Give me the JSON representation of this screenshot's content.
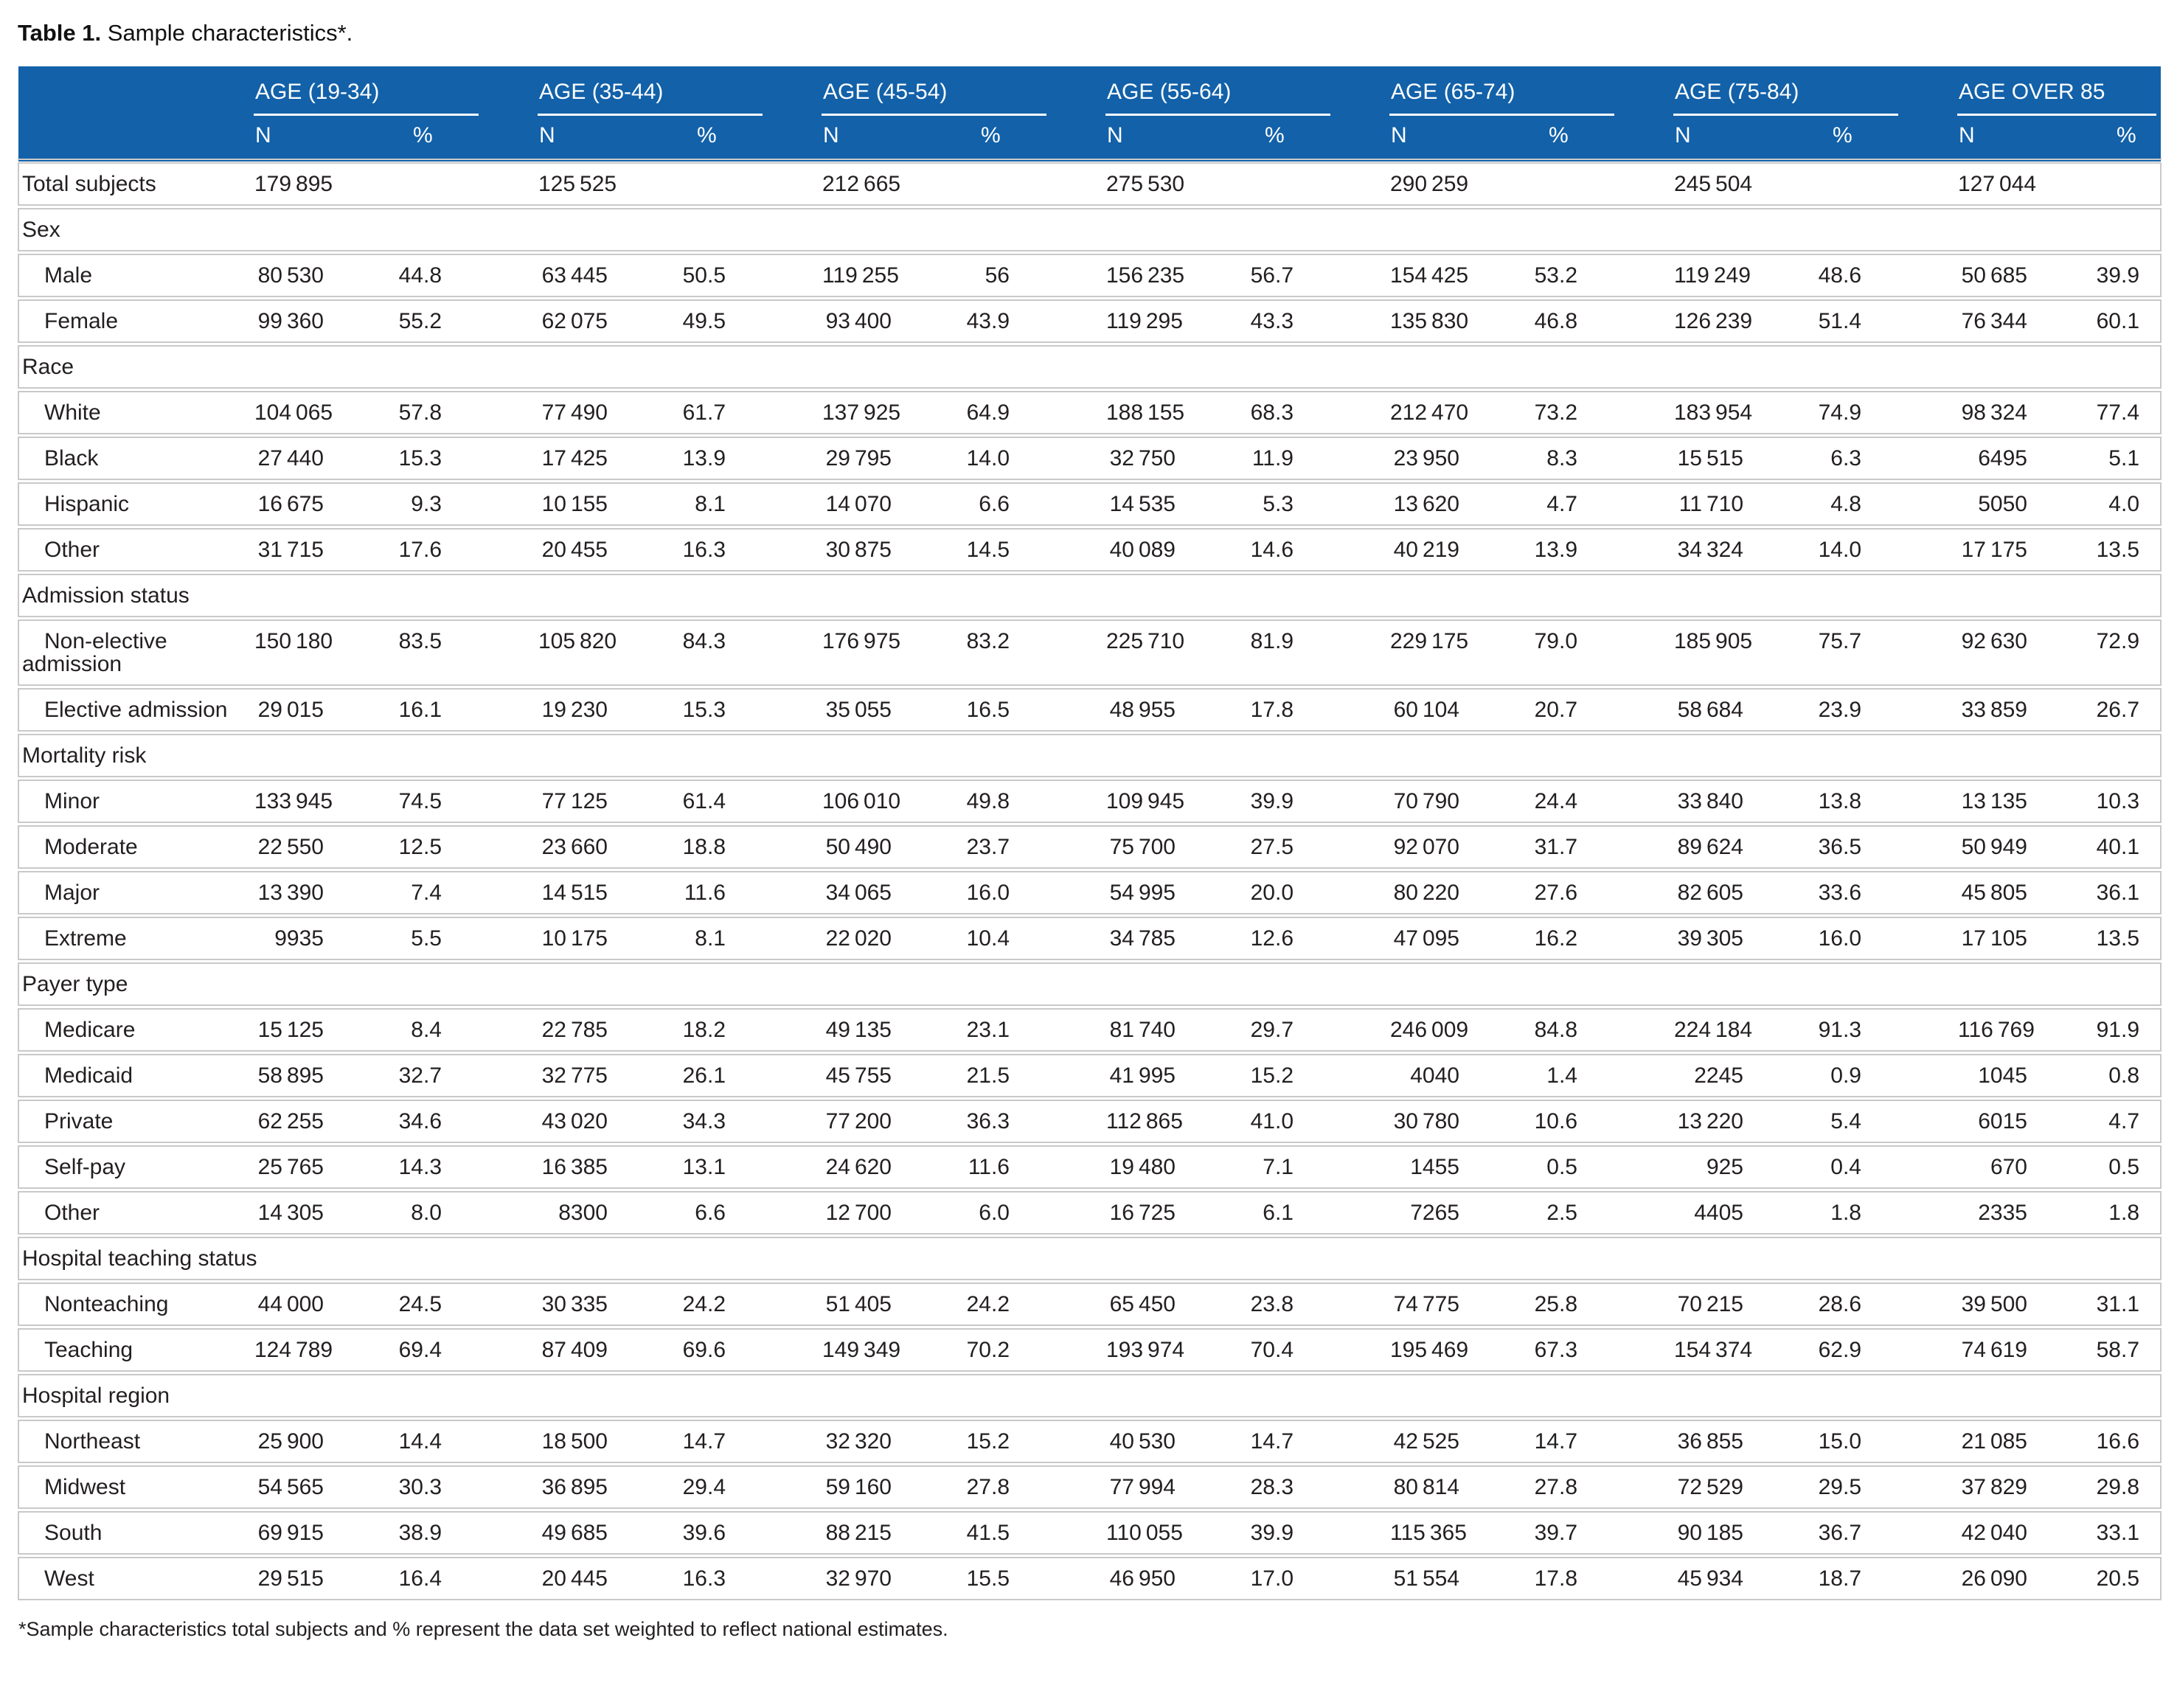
{
  "title": {
    "label": "Table 1.",
    "text": "Sample characteristics*."
  },
  "footnote": "*Sample characteristics total subjects and % represent the data set weighted to reflect national estimates.",
  "colors": {
    "header_bg": "#1261a9",
    "header_text": "#ffffff",
    "row_line": "#c9c9c9",
    "body_text": "#231f20"
  },
  "table": {
    "age_groups": [
      "AGE (19-34)",
      "AGE (35-44)",
      "AGE (45-54)",
      "AGE (55-64)",
      "AGE (65-74)",
      "AGE (75-84)",
      "AGE OVER 85"
    ],
    "subheaders": {
      "n": "N",
      "pct": "%"
    },
    "rows": [
      {
        "type": "data",
        "label": "Total subjects",
        "indent": false,
        "values": [
          [
            "179 895",
            ""
          ],
          [
            "125 525",
            ""
          ],
          [
            "212 665",
            ""
          ],
          [
            "275 530",
            ""
          ],
          [
            "290 259",
            ""
          ],
          [
            "245 504",
            ""
          ],
          [
            "127 044",
            ""
          ]
        ]
      },
      {
        "type": "section",
        "label": "Sex"
      },
      {
        "type": "data",
        "label": "Male",
        "indent": true,
        "values": [
          [
            "80 530",
            "44.8"
          ],
          [
            "63 445",
            "50.5"
          ],
          [
            "119 255",
            "56"
          ],
          [
            "156 235",
            "56.7"
          ],
          [
            "154 425",
            "53.2"
          ],
          [
            "119 249",
            "48.6"
          ],
          [
            "50 685",
            "39.9"
          ]
        ]
      },
      {
        "type": "data",
        "label": "Female",
        "indent": true,
        "values": [
          [
            "99 360",
            "55.2"
          ],
          [
            "62 075",
            "49.5"
          ],
          [
            "93 400",
            "43.9"
          ],
          [
            "119 295",
            "43.3"
          ],
          [
            "135 830",
            "46.8"
          ],
          [
            "126 239",
            "51.4"
          ],
          [
            "76 344",
            "60.1"
          ]
        ]
      },
      {
        "type": "section",
        "label": "Race"
      },
      {
        "type": "data",
        "label": "White",
        "indent": true,
        "values": [
          [
            "104 065",
            "57.8"
          ],
          [
            "77 490",
            "61.7"
          ],
          [
            "137 925",
            "64.9"
          ],
          [
            "188 155",
            "68.3"
          ],
          [
            "212 470",
            "73.2"
          ],
          [
            "183 954",
            "74.9"
          ],
          [
            "98 324",
            "77.4"
          ]
        ]
      },
      {
        "type": "data",
        "label": "Black",
        "indent": true,
        "values": [
          [
            "27 440",
            "15.3"
          ],
          [
            "17 425",
            "13.9"
          ],
          [
            "29 795",
            "14.0"
          ],
          [
            "32 750",
            "11.9"
          ],
          [
            "23 950",
            "8.3"
          ],
          [
            "15 515",
            "6.3"
          ],
          [
            "6495",
            "5.1"
          ]
        ]
      },
      {
        "type": "data",
        "label": "Hispanic",
        "indent": true,
        "values": [
          [
            "16 675",
            "9.3"
          ],
          [
            "10 155",
            "8.1"
          ],
          [
            "14 070",
            "6.6"
          ],
          [
            "14 535",
            "5.3"
          ],
          [
            "13 620",
            "4.7"
          ],
          [
            "11 710",
            "4.8"
          ],
          [
            "5050",
            "4.0"
          ]
        ]
      },
      {
        "type": "data",
        "label": "Other",
        "indent": true,
        "values": [
          [
            "31 715",
            "17.6"
          ],
          [
            "20 455",
            "16.3"
          ],
          [
            "30 875",
            "14.5"
          ],
          [
            "40 089",
            "14.6"
          ],
          [
            "40 219",
            "13.9"
          ],
          [
            "34 324",
            "14.0"
          ],
          [
            "17 175",
            "13.5"
          ]
        ]
      },
      {
        "type": "section",
        "label": "Admission status"
      },
      {
        "type": "data",
        "label": "Non-elective admission",
        "indent": true,
        "values": [
          [
            "150 180",
            "83.5"
          ],
          [
            "105 820",
            "84.3"
          ],
          [
            "176 975",
            "83.2"
          ],
          [
            "225 710",
            "81.9"
          ],
          [
            "229 175",
            "79.0"
          ],
          [
            "185 905",
            "75.7"
          ],
          [
            "92 630",
            "72.9"
          ]
        ]
      },
      {
        "type": "data",
        "label": "Elective admission",
        "indent": true,
        "values": [
          [
            "29 015",
            "16.1"
          ],
          [
            "19 230",
            "15.3"
          ],
          [
            "35 055",
            "16.5"
          ],
          [
            "48 955",
            "17.8"
          ],
          [
            "60 104",
            "20.7"
          ],
          [
            "58 684",
            "23.9"
          ],
          [
            "33 859",
            "26.7"
          ]
        ]
      },
      {
        "type": "section",
        "label": "Mortality risk"
      },
      {
        "type": "data",
        "label": "Minor",
        "indent": true,
        "values": [
          [
            "133 945",
            "74.5"
          ],
          [
            "77 125",
            "61.4"
          ],
          [
            "106 010",
            "49.8"
          ],
          [
            "109 945",
            "39.9"
          ],
          [
            "70 790",
            "24.4"
          ],
          [
            "33 840",
            "13.8"
          ],
          [
            "13 135",
            "10.3"
          ]
        ]
      },
      {
        "type": "data",
        "label": "Moderate",
        "indent": true,
        "values": [
          [
            "22 550",
            "12.5"
          ],
          [
            "23 660",
            "18.8"
          ],
          [
            "50 490",
            "23.7"
          ],
          [
            "75 700",
            "27.5"
          ],
          [
            "92 070",
            "31.7"
          ],
          [
            "89 624",
            "36.5"
          ],
          [
            "50 949",
            "40.1"
          ]
        ]
      },
      {
        "type": "data",
        "label": "Major",
        "indent": true,
        "values": [
          [
            "13 390",
            "7.4"
          ],
          [
            "14 515",
            "11.6"
          ],
          [
            "34 065",
            "16.0"
          ],
          [
            "54 995",
            "20.0"
          ],
          [
            "80 220",
            "27.6"
          ],
          [
            "82 605",
            "33.6"
          ],
          [
            "45 805",
            "36.1"
          ]
        ]
      },
      {
        "type": "data",
        "label": "Extreme",
        "indent": true,
        "values": [
          [
            "9935",
            "5.5"
          ],
          [
            "10 175",
            "8.1"
          ],
          [
            "22 020",
            "10.4"
          ],
          [
            "34 785",
            "12.6"
          ],
          [
            "47 095",
            "16.2"
          ],
          [
            "39 305",
            "16.0"
          ],
          [
            "17 105",
            "13.5"
          ]
        ]
      },
      {
        "type": "section",
        "label": "Payer type"
      },
      {
        "type": "data",
        "label": "Medicare",
        "indent": true,
        "values": [
          [
            "15 125",
            "8.4"
          ],
          [
            "22 785",
            "18.2"
          ],
          [
            "49 135",
            "23.1"
          ],
          [
            "81 740",
            "29.7"
          ],
          [
            "246 009",
            "84.8"
          ],
          [
            "224 184",
            "91.3"
          ],
          [
            "116 769",
            "91.9"
          ]
        ]
      },
      {
        "type": "data",
        "label": "Medicaid",
        "indent": true,
        "values": [
          [
            "58 895",
            "32.7"
          ],
          [
            "32 775",
            "26.1"
          ],
          [
            "45 755",
            "21.5"
          ],
          [
            "41 995",
            "15.2"
          ],
          [
            "4040",
            "1.4"
          ],
          [
            "2245",
            "0.9"
          ],
          [
            "1045",
            "0.8"
          ]
        ]
      },
      {
        "type": "data",
        "label": "Private",
        "indent": true,
        "values": [
          [
            "62 255",
            "34.6"
          ],
          [
            "43 020",
            "34.3"
          ],
          [
            "77 200",
            "36.3"
          ],
          [
            "112 865",
            "41.0"
          ],
          [
            "30 780",
            "10.6"
          ],
          [
            "13 220",
            "5.4"
          ],
          [
            "6015",
            "4.7"
          ]
        ]
      },
      {
        "type": "data",
        "label": "Self-pay",
        "indent": true,
        "values": [
          [
            "25 765",
            "14.3"
          ],
          [
            "16 385",
            "13.1"
          ],
          [
            "24 620",
            "11.6"
          ],
          [
            "19 480",
            "7.1"
          ],
          [
            "1455",
            "0.5"
          ],
          [
            "925",
            "0.4"
          ],
          [
            "670",
            "0.5"
          ]
        ]
      },
      {
        "type": "data",
        "label": "Other",
        "indent": true,
        "values": [
          [
            "14 305",
            "8.0"
          ],
          [
            "8300",
            "6.6"
          ],
          [
            "12 700",
            "6.0"
          ],
          [
            "16 725",
            "6.1"
          ],
          [
            "7265",
            "2.5"
          ],
          [
            "4405",
            "1.8"
          ],
          [
            "2335",
            "1.8"
          ]
        ]
      },
      {
        "type": "section",
        "label": "Hospital teaching status"
      },
      {
        "type": "data",
        "label": "Nonteaching",
        "indent": true,
        "values": [
          [
            "44 000",
            "24.5"
          ],
          [
            "30 335",
            "24.2"
          ],
          [
            "51 405",
            "24.2"
          ],
          [
            "65 450",
            "23.8"
          ],
          [
            "74 775",
            "25.8"
          ],
          [
            "70 215",
            "28.6"
          ],
          [
            "39 500",
            "31.1"
          ]
        ]
      },
      {
        "type": "data",
        "label": "Teaching",
        "indent": true,
        "values": [
          [
            "124 789",
            "69.4"
          ],
          [
            "87 409",
            "69.6"
          ],
          [
            "149 349",
            "70.2"
          ],
          [
            "193 974",
            "70.4"
          ],
          [
            "195 469",
            "67.3"
          ],
          [
            "154 374",
            "62.9"
          ],
          [
            "74 619",
            "58.7"
          ]
        ]
      },
      {
        "type": "section",
        "label": "Hospital region"
      },
      {
        "type": "data",
        "label": "Northeast",
        "indent": true,
        "values": [
          [
            "25 900",
            "14.4"
          ],
          [
            "18 500",
            "14.7"
          ],
          [
            "32 320",
            "15.2"
          ],
          [
            "40 530",
            "14.7"
          ],
          [
            "42 525",
            "14.7"
          ],
          [
            "36 855",
            "15.0"
          ],
          [
            "21 085",
            "16.6"
          ]
        ]
      },
      {
        "type": "data",
        "label": "Midwest",
        "indent": true,
        "values": [
          [
            "54 565",
            "30.3"
          ],
          [
            "36 895",
            "29.4"
          ],
          [
            "59 160",
            "27.8"
          ],
          [
            "77 994",
            "28.3"
          ],
          [
            "80 814",
            "27.8"
          ],
          [
            "72 529",
            "29.5"
          ],
          [
            "37 829",
            "29.8"
          ]
        ]
      },
      {
        "type": "data",
        "label": "South",
        "indent": true,
        "values": [
          [
            "69 915",
            "38.9"
          ],
          [
            "49 685",
            "39.6"
          ],
          [
            "88 215",
            "41.5"
          ],
          [
            "110 055",
            "39.9"
          ],
          [
            "115 365",
            "39.7"
          ],
          [
            "90 185",
            "36.7"
          ],
          [
            "42 040",
            "33.1"
          ]
        ]
      },
      {
        "type": "data",
        "label": "West",
        "indent": true,
        "values": [
          [
            "29 515",
            "16.4"
          ],
          [
            "20 445",
            "16.3"
          ],
          [
            "32 970",
            "15.5"
          ],
          [
            "46 950",
            "17.0"
          ],
          [
            "51 554",
            "17.8"
          ],
          [
            "45 934",
            "18.7"
          ],
          [
            "26 090",
            "20.5"
          ]
        ]
      }
    ]
  }
}
